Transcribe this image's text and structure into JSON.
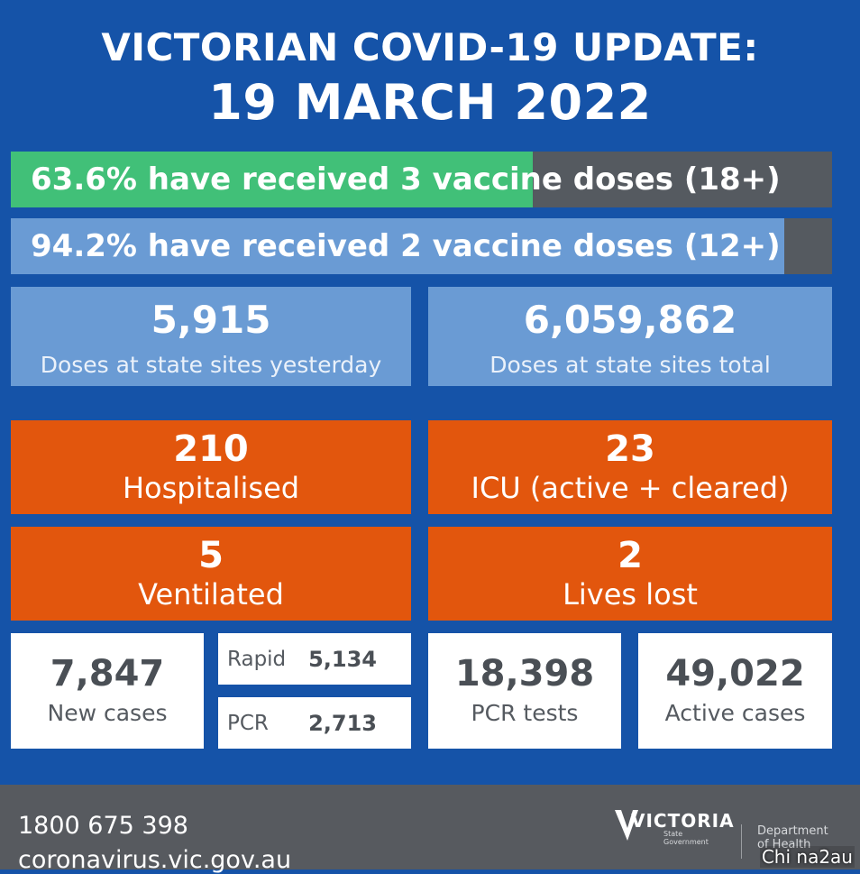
{
  "header": {
    "title_line1": "VICTORIAN COVID-19 UPDATE:",
    "title_line2": "19 MARCH 2022"
  },
  "vaccination": {
    "three_dose": {
      "text": "63.6% have received 3 vaccine doses (18+)",
      "percent": 63.6,
      "color": "#41c078"
    },
    "two_dose": {
      "text": "94.2% have received 2 vaccine doses (12+)",
      "percent": 94.2,
      "color": "#6a9bd4"
    }
  },
  "doses": {
    "yesterday": {
      "value": "5,915",
      "label": "Doses at state sites yesterday"
    },
    "total": {
      "value": "6,059,862",
      "label": "Doses at state sites total"
    }
  },
  "hospital": {
    "hospitalised": {
      "value": "210",
      "label": "Hospitalised"
    },
    "icu": {
      "value": "23",
      "label": "ICU (active + cleared)"
    },
    "ventilated": {
      "value": "5",
      "label": "Ventilated"
    },
    "lives_lost": {
      "value": "2",
      "label": "Lives lost"
    }
  },
  "cases": {
    "new_cases": {
      "value": "7,847",
      "label": "New cases"
    },
    "rapid": {
      "label": "Rapid",
      "value": "5,134"
    },
    "pcr": {
      "label": "PCR",
      "value": "2,713"
    },
    "pcr_tests": {
      "value": "18,398",
      "label": "PCR tests"
    },
    "active_cases": {
      "value": "49,022",
      "label": "Active cases"
    }
  },
  "footer": {
    "phone": "1800 675 398",
    "website": "coronavirus.vic.gov.au",
    "logo_text": "VICTORIA",
    "logo_subtext_1": "State",
    "logo_subtext_2": "Government",
    "department_line1": "Department",
    "department_line2": "of Health"
  },
  "watermark": "Chi na2au",
  "colors": {
    "background": "#1553a8",
    "green": "#41c078",
    "light_blue": "#6a9bd4",
    "orange": "#e2560d",
    "grey": "#555a60"
  }
}
